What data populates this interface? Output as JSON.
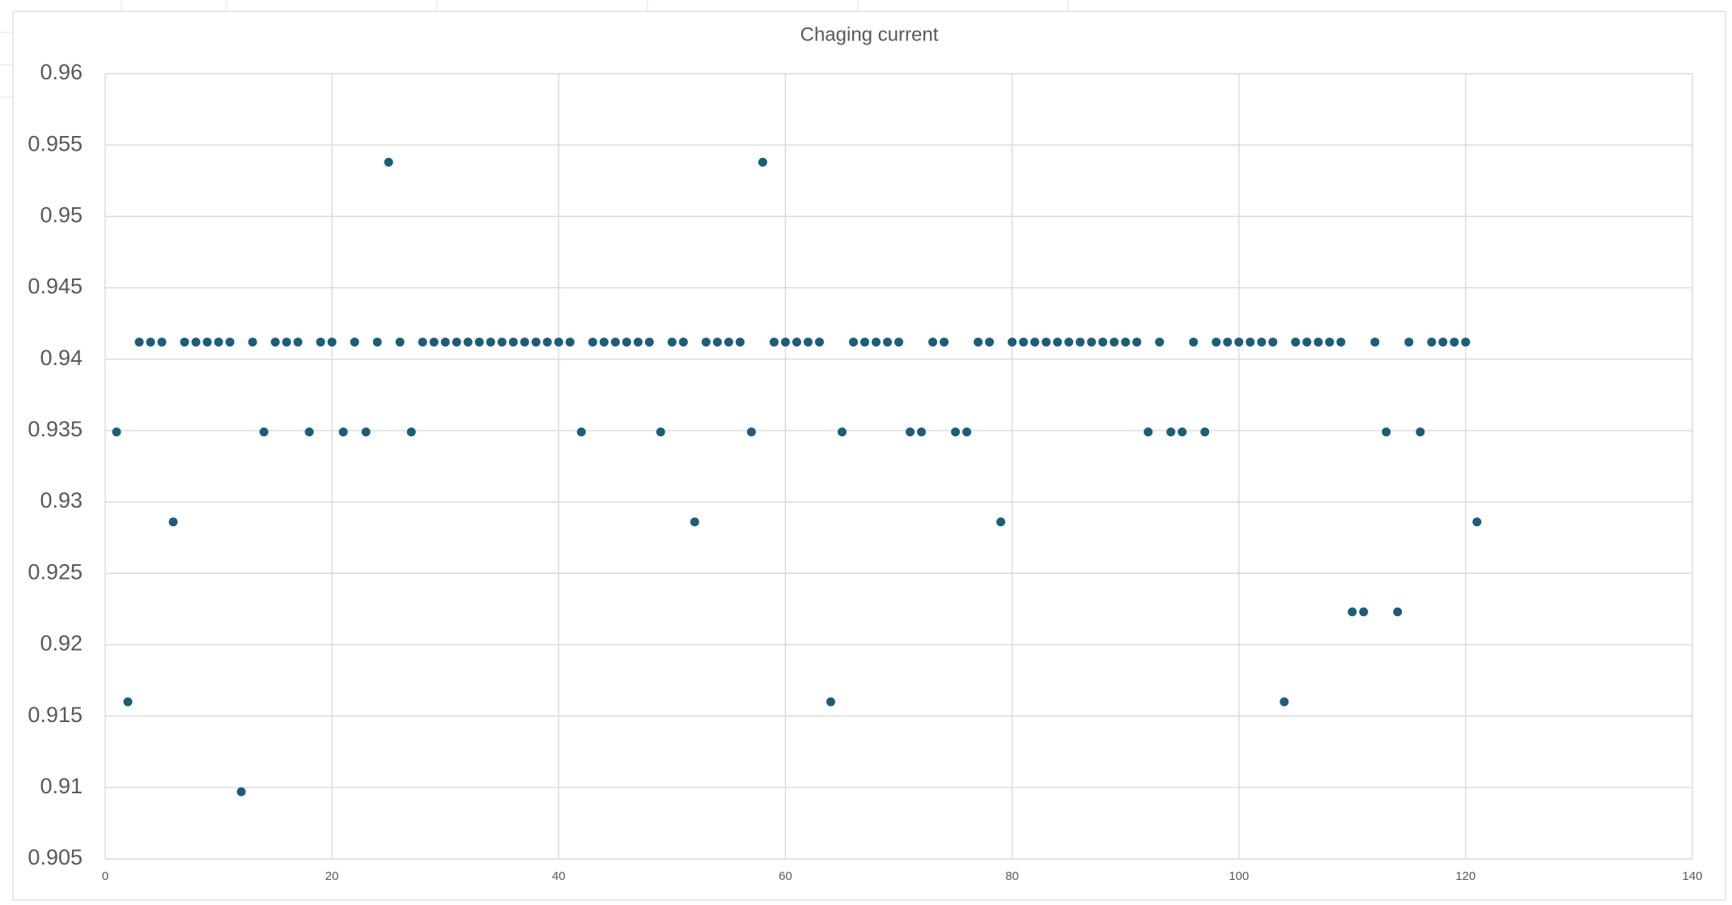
{
  "chart_data": {
    "type": "scatter",
    "title": "Chaging current",
    "x": [
      1,
      2,
      3,
      4,
      5,
      6,
      7,
      8,
      9,
      10,
      11,
      12,
      13,
      14,
      15,
      16,
      17,
      18,
      19,
      20,
      21,
      22,
      23,
      24,
      25,
      26,
      27,
      28,
      29,
      30,
      31,
      32,
      33,
      34,
      35,
      36,
      37,
      38,
      39,
      40,
      41,
      42,
      43,
      44,
      45,
      46,
      47,
      48,
      49,
      50,
      51,
      52,
      53,
      54,
      55,
      56,
      57,
      58,
      59,
      60,
      61,
      62,
      63,
      64,
      65,
      66,
      67,
      68,
      69,
      70,
      71,
      72,
      73,
      74,
      75,
      76,
      77,
      78,
      79,
      80,
      81,
      82,
      83,
      84,
      85,
      86,
      87,
      88,
      89,
      90,
      91,
      92,
      93,
      94,
      95,
      96,
      97,
      98,
      99,
      100,
      101,
      102,
      103,
      104,
      105,
      106,
      107,
      108,
      109,
      110,
      111,
      112,
      113,
      114,
      115,
      116,
      117,
      118,
      119,
      120,
      121
    ],
    "series": [
      {
        "color": "#1b5e7b",
        "values": [
          0.9349,
          0.916,
          0.9412,
          0.9412,
          0.9412,
          0.9286,
          0.9412,
          0.9412,
          0.9412,
          0.9412,
          0.9412,
          0.9097,
          0.9412,
          0.9349,
          0.9412,
          0.9412,
          0.9412,
          0.9349,
          0.9412,
          0.9412,
          0.9349,
          0.9412,
          0.9349,
          0.9412,
          0.9538,
          0.9412,
          0.9349,
          0.9412,
          0.9412,
          0.9412,
          0.9412,
          0.9412,
          0.9412,
          0.9412,
          0.9412,
          0.9412,
          0.9412,
          0.9412,
          0.9412,
          0.9412,
          0.9412,
          0.9349,
          0.9412,
          0.9412,
          0.9412,
          0.9412,
          0.9412,
          0.9412,
          0.9349,
          0.9412,
          0.9412,
          0.9286,
          0.9412,
          0.9412,
          0.9412,
          0.9412,
          0.9349,
          0.9538,
          0.9412,
          0.9412,
          0.9412,
          0.9412,
          0.9412,
          0.916,
          0.9349,
          0.9412,
          0.9412,
          0.9412,
          0.9412,
          0.9412,
          0.9349,
          0.9349,
          0.9412,
          0.9412,
          0.9349,
          0.9349,
          0.9412,
          0.9412,
          0.9286,
          0.9412,
          0.9412,
          0.9412,
          0.9412,
          0.9412,
          0.9412,
          0.9412,
          0.9412,
          0.9412,
          0.9412,
          0.9412,
          0.9412,
          0.9349,
          0.9412,
          0.9349,
          0.9349,
          0.9412,
          0.9349,
          0.9412,
          0.9412,
          0.9412,
          0.9412,
          0.9412,
          0.9412,
          0.916,
          0.9412,
          0.9412,
          0.9412,
          0.9412,
          0.9412,
          0.9223,
          0.9223,
          0.9412,
          0.9349,
          0.9223,
          0.9412,
          0.9349,
          0.9412,
          0.9412,
          0.9412,
          0.9412,
          0.9286
        ]
      }
    ],
    "xlim": [
      0,
      140
    ],
    "xticks": [
      0,
      20,
      40,
      60,
      80,
      100,
      120,
      140
    ],
    "ylim": [
      0.905,
      0.96
    ],
    "yticks": [
      0.905,
      0.91,
      0.915,
      0.92,
      0.925,
      0.93,
      0.935,
      0.94,
      0.945,
      0.95,
      0.955,
      0.96
    ],
    "grid": true
  }
}
